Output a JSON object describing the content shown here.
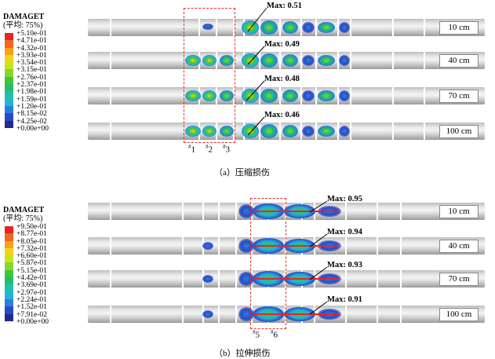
{
  "panels": [
    {
      "caption": "（a）压缩损伤",
      "legend": {
        "title": "DAMAGET",
        "subtitle": "(平均: 75%)",
        "values": [
          "+5.10e-01",
          "+4.71e-01",
          "+4.32e-01",
          "+3.93e-01",
          "+3.54e-01",
          "+3.15e-01",
          "+2.76e-01",
          "+2.37e-01",
          "+1.98e-01",
          "+1.59e-01",
          "+1.20e-01",
          "+8.15e-02",
          "+4.25e-02",
          "+0.00e+00"
        ]
      },
      "rows": [
        {
          "max": "Max: 0.51",
          "size": "10 cm"
        },
        {
          "max": "Max: 0.49",
          "size": "40 cm"
        },
        {
          "max": "Max: 0.48",
          "size": "70 cm"
        },
        {
          "max": "Max: 0.46",
          "size": "100 cm"
        }
      ],
      "markers": [
        "1",
        "2",
        "3"
      ]
    },
    {
      "caption": "（b）拉伸损伤",
      "legend": {
        "title": "DAMAGET",
        "subtitle": "(平均: 75%)",
        "values": [
          "+9.50e-01",
          "+8.77e-01",
          "+8.05e-01",
          "+7.32e-01",
          "+6.60e-01",
          "+5.87e-01",
          "+5.15e-01",
          "+4.42e-01",
          "+3.69e-01",
          "+2.97e-01",
          "+2.24e-01",
          "+1.52e-01",
          "+7.91e-02",
          "+0.00e+00"
        ]
      },
      "rows": [
        {
          "max": "Max: 0.95",
          "size": "10 cm"
        },
        {
          "max": "Max: 0.94",
          "size": "40 cm"
        },
        {
          "max": "Max: 0.93",
          "size": "70 cm"
        },
        {
          "max": "Max: 0.91",
          "size": "100 cm"
        }
      ],
      "markers": [
        "5",
        "6"
      ]
    }
  ],
  "legend_colors": [
    "#e8251e",
    "#f2661e",
    "#f7a11c",
    "#f4d21a",
    "#c8e21f",
    "#86d62c",
    "#3ec63d",
    "#22bd6e",
    "#22c0a9",
    "#1fb2db",
    "#2a7fdb",
    "#2a49c8",
    "#23288f",
    "#c8c8c8"
  ]
}
